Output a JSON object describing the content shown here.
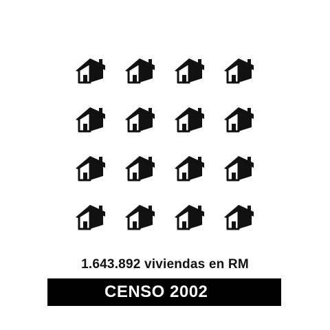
{
  "icon": "house-icon",
  "icon_count": 16,
  "icon_color": "#111111",
  "caption": "1.643.892 viviendas en RM",
  "banner": {
    "label": "CENSO 2002",
    "background": "#000000",
    "text_color": "#ffffff"
  }
}
